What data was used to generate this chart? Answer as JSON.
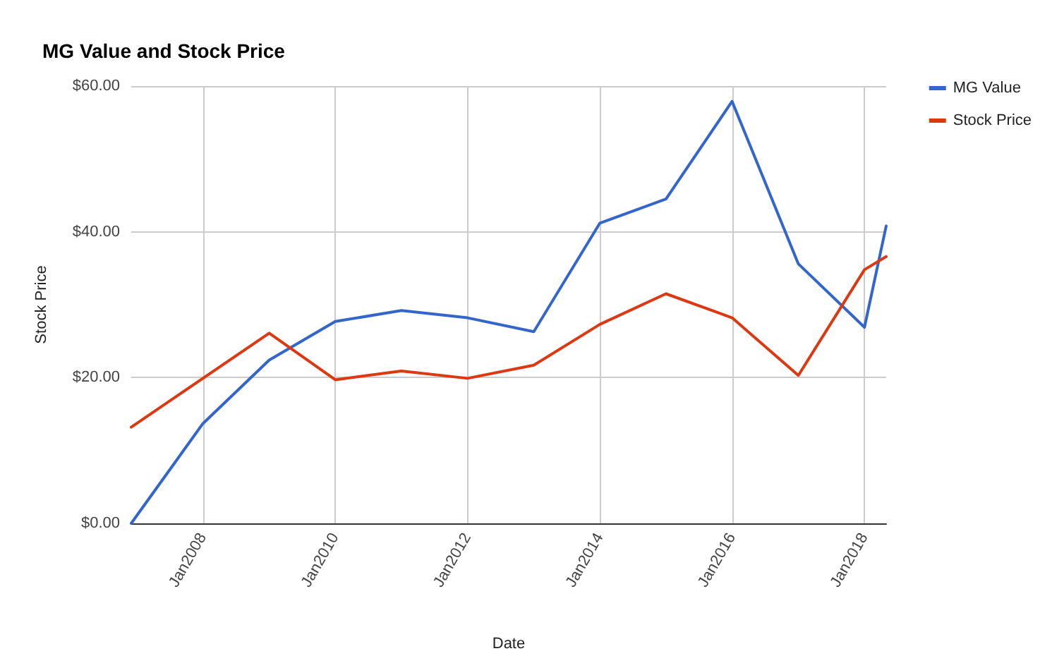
{
  "chart_data": {
    "type": "line",
    "title": "MG Value and Stock Price",
    "xlabel": "Date",
    "ylabel": "Stock Price",
    "x": [
      "2006-12",
      "2008-01",
      "2009-01",
      "2010-01",
      "2011-01",
      "2012-01",
      "2013-01",
      "2014-01",
      "2015-01",
      "2016-01",
      "2017-01",
      "2018-01",
      "2018-05"
    ],
    "series": [
      {
        "name": "MG Value",
        "color": "#3366cc",
        "values": [
          0,
          13.7,
          22.4,
          27.7,
          29.2,
          28.2,
          26.3,
          41.2,
          44.5,
          57.9,
          35.6,
          26.9,
          40.8
        ]
      },
      {
        "name": "Stock Price",
        "color": "#dc3912",
        "values": [
          13.2,
          19.9,
          26.1,
          19.7,
          20.9,
          19.9,
          21.7,
          27.3,
          31.5,
          28.2,
          20.3,
          34.8,
          36.6
        ]
      }
    ],
    "xlim": [
      "2006-12",
      "2018-05"
    ],
    "xticks": [
      {
        "value": "2008-01",
        "label": "Jan2008"
      },
      {
        "value": "2010-01",
        "label": "Jan2010"
      },
      {
        "value": "2012-01",
        "label": "Jan2012"
      },
      {
        "value": "2014-01",
        "label": "Jan2014"
      },
      {
        "value": "2016-01",
        "label": "Jan2016"
      },
      {
        "value": "2018-01",
        "label": "Jan2018"
      }
    ],
    "ylim": [
      0,
      60
    ],
    "yticks": [
      {
        "value": 0,
        "label": "$0.00"
      },
      {
        "value": 20,
        "label": "$20.00"
      },
      {
        "value": 40,
        "label": "$40.00"
      },
      {
        "value": 60,
        "label": "$60.00"
      }
    ],
    "grid": true,
    "legend": "top right",
    "marker": "none",
    "line_style": "solid"
  }
}
